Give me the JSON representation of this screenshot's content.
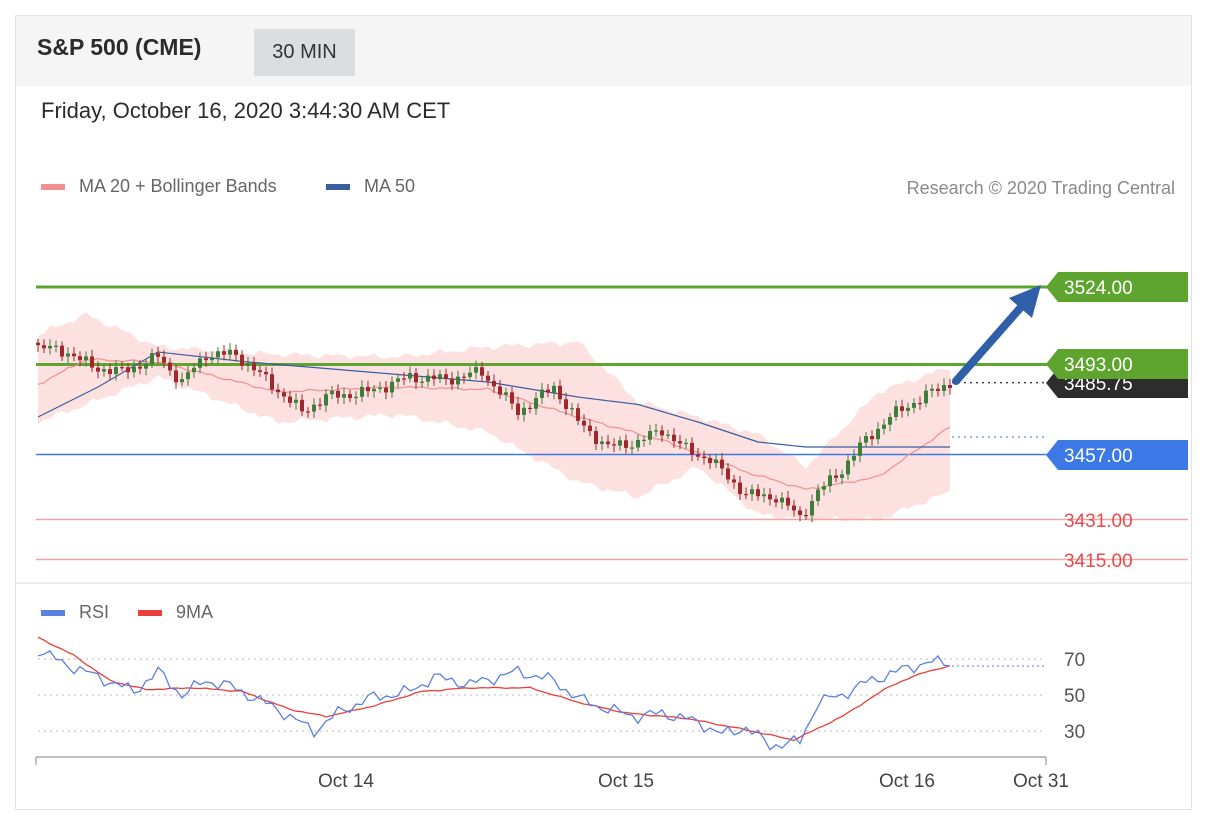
{
  "header": {
    "title": "S&P 500 (CME)",
    "interval": "30 MIN"
  },
  "timestamp": "Friday, October 16, 2020 3:44:30 AM CET",
  "legend": [
    {
      "label": "MA 20 + Bollinger Bands",
      "color": "#f08f8f"
    },
    {
      "label": "MA 50",
      "color": "#3a5fa0"
    }
  ],
  "credit": "Research © 2020 Trading Central",
  "colors": {
    "resistance": "#5ea52f",
    "support": "#3c78e6",
    "minor": "#f07a7a",
    "last": "#2d2d2d",
    "up": "#3f7d3a",
    "down": "#a0282b",
    "band": "#fde0e0",
    "ma20": "#f08f8f",
    "ma50": "#3a5fa0",
    "rsi": "#5a80e0",
    "rsi_ma": "#e8403a"
  },
  "levels": [
    {
      "label": "3524.00",
      "value": 3524,
      "kind": "resistance"
    },
    {
      "label": "3493.00",
      "value": 3493,
      "kind": "resistance"
    },
    {
      "label": "3485.75",
      "value": 3485.75,
      "kind": "last"
    },
    {
      "label": "3457.00",
      "value": 3457,
      "kind": "support"
    },
    {
      "label": "3431.00",
      "value": 3431,
      "kind": "minor"
    },
    {
      "label": "3415.00",
      "value": 3415,
      "kind": "minor"
    }
  ],
  "rsi_legend": [
    {
      "label": "RSI",
      "color": "#5a80e0"
    },
    {
      "label": "9MA",
      "color": "#e8403a"
    }
  ],
  "rsi_levels": [
    "70",
    "50",
    "30"
  ],
  "x_axis": [
    "Oct 14",
    "Oct 15",
    "Oct 16",
    "Oct 31"
  ],
  "chart_data": {
    "type": "line",
    "price_anchors": [
      [
        0,
        3500
      ],
      [
        5,
        3498
      ],
      [
        9,
        3492
      ],
      [
        14,
        3490
      ],
      [
        20,
        3496
      ],
      [
        24,
        3486
      ],
      [
        28,
        3497
      ],
      [
        33,
        3497
      ],
      [
        38,
        3487
      ],
      [
        44,
        3474
      ],
      [
        48,
        3480
      ],
      [
        55,
        3482
      ],
      [
        62,
        3488
      ],
      [
        68,
        3487
      ],
      [
        74,
        3490
      ],
      [
        80,
        3474
      ],
      [
        86,
        3484
      ],
      [
        90,
        3470
      ],
      [
        95,
        3460
      ],
      [
        100,
        3462
      ],
      [
        104,
        3467
      ],
      [
        108,
        3459
      ],
      [
        112,
        3455
      ],
      [
        118,
        3441
      ],
      [
        123,
        3440
      ],
      [
        127,
        3432
      ],
      [
        130,
        3442
      ],
      [
        134,
        3451
      ],
      [
        138,
        3463
      ],
      [
        142,
        3472
      ],
      [
        146,
        3478
      ],
      [
        152,
        3485.75
      ]
    ],
    "ma20_anchors": [
      [
        0,
        3485
      ],
      [
        8,
        3495
      ],
      [
        20,
        3494
      ],
      [
        40,
        3482
      ],
      [
        60,
        3484
      ],
      [
        75,
        3483
      ],
      [
        90,
        3472
      ],
      [
        105,
        3462
      ],
      [
        118,
        3450
      ],
      [
        128,
        3443
      ],
      [
        140,
        3448
      ],
      [
        152,
        3468
      ]
    ],
    "band_upper_anchors": [
      [
        0,
        3505
      ],
      [
        8,
        3513
      ],
      [
        20,
        3500
      ],
      [
        40,
        3497
      ],
      [
        60,
        3496
      ],
      [
        75,
        3500
      ],
      [
        90,
        3502
      ],
      [
        100,
        3478
      ],
      [
        110,
        3472
      ],
      [
        120,
        3465
      ],
      [
        128,
        3452
      ],
      [
        140,
        3482
      ],
      [
        152,
        3492
      ]
    ],
    "band_lower_anchors": [
      [
        0,
        3470
      ],
      [
        8,
        3477
      ],
      [
        20,
        3488
      ],
      [
        40,
        3470
      ],
      [
        60,
        3473
      ],
      [
        75,
        3466
      ],
      [
        90,
        3446
      ],
      [
        100,
        3440
      ],
      [
        110,
        3452
      ],
      [
        120,
        3433
      ],
      [
        128,
        3431
      ],
      [
        140,
        3431
      ],
      [
        152,
        3442
      ]
    ],
    "ma50_anchors": [
      [
        0,
        3472
      ],
      [
        10,
        3484
      ],
      [
        20,
        3498
      ],
      [
        35,
        3494
      ],
      [
        55,
        3490
      ],
      [
        75,
        3486
      ],
      [
        90,
        3480
      ],
      [
        100,
        3477
      ],
      [
        110,
        3470
      ],
      [
        120,
        3462
      ],
      [
        128,
        3460
      ],
      [
        135,
        3460
      ],
      [
        152,
        3460
      ]
    ],
    "rsi_anchors": [
      [
        0,
        75
      ],
      [
        4,
        68
      ],
      [
        10,
        60
      ],
      [
        16,
        52
      ],
      [
        20,
        63
      ],
      [
        24,
        50
      ],
      [
        28,
        58
      ],
      [
        32,
        55
      ],
      [
        40,
        42
      ],
      [
        46,
        30
      ],
      [
        50,
        40
      ],
      [
        55,
        48
      ],
      [
        62,
        52
      ],
      [
        66,
        60
      ],
      [
        72,
        56
      ],
      [
        80,
        63
      ],
      [
        86,
        58
      ],
      [
        90,
        48
      ],
      [
        95,
        42
      ],
      [
        100,
        38
      ],
      [
        104,
        40
      ],
      [
        110,
        35
      ],
      [
        114,
        28
      ],
      [
        118,
        32
      ],
      [
        122,
        22
      ],
      [
        127,
        24
      ],
      [
        130,
        46
      ],
      [
        134,
        50
      ],
      [
        138,
        57
      ],
      [
        144,
        64
      ],
      [
        148,
        68
      ],
      [
        152,
        68
      ]
    ],
    "rsi_ma_anchors": [
      [
        0,
        82
      ],
      [
        6,
        72
      ],
      [
        12,
        58
      ],
      [
        18,
        53
      ],
      [
        26,
        54
      ],
      [
        34,
        52
      ],
      [
        42,
        42
      ],
      [
        48,
        38
      ],
      [
        56,
        44
      ],
      [
        64,
        52
      ],
      [
        72,
        54
      ],
      [
        82,
        54
      ],
      [
        90,
        46
      ],
      [
        98,
        40
      ],
      [
        108,
        37
      ],
      [
        116,
        32
      ],
      [
        126,
        25
      ],
      [
        134,
        38
      ],
      [
        142,
        55
      ],
      [
        148,
        63
      ],
      [
        152,
        66
      ]
    ],
    "title": "",
    "xlabel": "",
    "ylabel": "",
    "ylim": [
      3408,
      3545
    ]
  }
}
